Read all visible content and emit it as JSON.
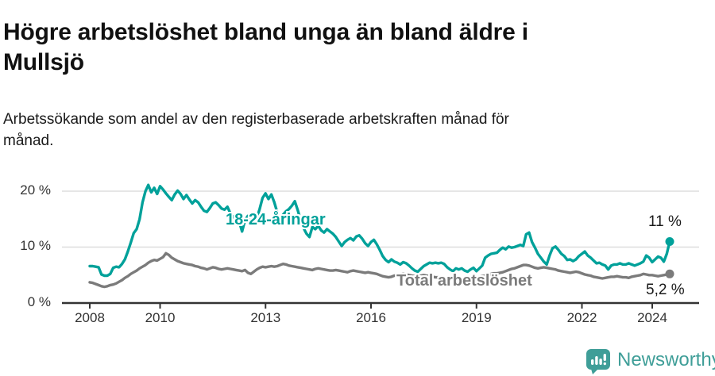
{
  "title": "Högre arbetslöshet bland unga än bland äldre i Mullsjö",
  "subtitle": "Arbetssökande som andel av den registerbaserade arbetskraften månad för månad.",
  "colors": {
    "accent_teal": "#00a19a",
    "line_gray": "#7b7b7b",
    "axis": "#333333",
    "gridline": "#dedede",
    "text_dark": "#1a1a1a",
    "logo_teal": "#3f9e98"
  },
  "chart_data": {
    "type": "line",
    "x_unit": "month",
    "x_tick_years": [
      2008,
      2010,
      2013,
      2016,
      2019,
      2022,
      2024
    ],
    "x_tick_labels": [
      "2008",
      "2010",
      "2013",
      "2016",
      "2019",
      "2022",
      "2024"
    ],
    "y_ticks": [
      0,
      10,
      20
    ],
    "y_tick_labels": [
      "0 %",
      "10 %",
      "20 %"
    ],
    "ylim": [
      0,
      22
    ],
    "grid": "horizontal",
    "series": [
      {
        "name": "18-24-åringar",
        "color": "#00a19a",
        "end_label": "11 %",
        "end_value": 11.0,
        "values": [
          6.6,
          6.6,
          6.5,
          6.4,
          5.1,
          4.9,
          4.9,
          5.2,
          6.3,
          6.5,
          6.4,
          7.0,
          7.8,
          9.2,
          10.8,
          12.5,
          13.2,
          15.0,
          18.0,
          20.0,
          21.1,
          19.8,
          20.6,
          19.5,
          20.9,
          20.3,
          19.6,
          19.0,
          18.4,
          19.4,
          20.1,
          19.5,
          18.6,
          19.3,
          18.5,
          17.8,
          18.4,
          18.0,
          17.2,
          16.5,
          16.3,
          17.0,
          17.8,
          18.0,
          17.5,
          16.9,
          16.7,
          17.2,
          16.0,
          15.4,
          15.0,
          14.6,
          12.8,
          14.8,
          15.6,
          14.4,
          14.7,
          15.2,
          16.8,
          18.8,
          19.6,
          18.6,
          19.4,
          18.0,
          16.2,
          14.8,
          15.8,
          16.4,
          16.8,
          17.4,
          18.2,
          16.6,
          14.8,
          13.4,
          12.4,
          11.8,
          13.6,
          13.2,
          13.8,
          13.0,
          12.6,
          13.2,
          12.8,
          12.4,
          11.8,
          11.0,
          10.2,
          10.9,
          11.3,
          11.6,
          11.2,
          11.9,
          12.1,
          11.5,
          10.7,
          10.2,
          10.9,
          11.3,
          10.5,
          9.5,
          8.4,
          7.7,
          7.3,
          7.8,
          7.4,
          7.2,
          6.9,
          7.3,
          7.1,
          6.7,
          6.2,
          5.8,
          5.6,
          6.1,
          6.6,
          6.9,
          7.2,
          7.1,
          7.2,
          7.1,
          7.2,
          7.0,
          6.4,
          6.0,
          5.7,
          6.2,
          6.0,
          6.2,
          5.8,
          5.6,
          6.0,
          6.3,
          5.7,
          6.2,
          6.7,
          8.1,
          8.5,
          8.8,
          8.9,
          9.0,
          9.5,
          9.9,
          9.6,
          10.1,
          9.9,
          10.0,
          10.2,
          10.4,
          10.2,
          12.3,
          12.6,
          10.9,
          9.9,
          8.8,
          8.1,
          7.4,
          6.9,
          8.5,
          9.8,
          10.1,
          9.5,
          8.8,
          8.4,
          7.7,
          7.8,
          7.5,
          7.8,
          8.4,
          8.8,
          9.2,
          8.5,
          8.1,
          7.6,
          7.1,
          7.2,
          6.9,
          6.7,
          6.0,
          6.7,
          6.9,
          6.9,
          7.1,
          6.9,
          6.9,
          7.1,
          6.9,
          6.7,
          6.9,
          7.1,
          7.4,
          8.5,
          8.1,
          7.3,
          7.8,
          8.3,
          8.1,
          7.4,
          8.8,
          11.0
        ]
      },
      {
        "name": "Total arbetslöshet",
        "color": "#7b7b7b",
        "end_label": "5,2 %",
        "end_value": 5.2,
        "values": [
          3.7,
          3.6,
          3.4,
          3.2,
          3.0,
          2.9,
          3.0,
          3.2,
          3.3,
          3.5,
          3.8,
          4.1,
          4.5,
          4.8,
          5.2,
          5.5,
          5.8,
          6.2,
          6.5,
          6.8,
          7.2,
          7.5,
          7.7,
          7.6,
          7.9,
          8.2,
          8.9,
          8.6,
          8.1,
          7.8,
          7.5,
          7.3,
          7.1,
          7.0,
          6.9,
          6.8,
          6.6,
          6.5,
          6.3,
          6.2,
          6.0,
          6.2,
          6.4,
          6.3,
          6.1,
          6.0,
          6.1,
          6.2,
          6.1,
          6.0,
          5.9,
          5.8,
          5.7,
          5.9,
          5.4,
          5.2,
          5.6,
          6.0,
          6.3,
          6.5,
          6.4,
          6.5,
          6.6,
          6.5,
          6.6,
          6.8,
          7.0,
          6.9,
          6.7,
          6.6,
          6.5,
          6.4,
          6.3,
          6.2,
          6.1,
          6.0,
          5.9,
          6.1,
          6.2,
          6.1,
          6.0,
          5.9,
          5.8,
          5.8,
          5.9,
          5.8,
          5.7,
          5.6,
          5.5,
          5.7,
          5.8,
          5.7,
          5.6,
          5.5,
          5.4,
          5.5,
          5.4,
          5.3,
          5.2,
          5.0,
          4.8,
          4.7,
          4.6,
          4.7,
          4.9,
          5.0,
          5.1,
          5.2,
          5.1,
          5.0,
          4.9,
          4.8,
          4.7,
          4.9,
          5.0,
          4.9,
          4.8,
          4.7,
          4.6,
          4.6,
          4.7,
          4.6,
          4.5,
          4.4,
          4.3,
          4.5,
          4.6,
          4.5,
          4.4,
          4.3,
          4.3,
          4.4,
          4.6,
          4.7,
          4.8,
          4.9,
          5.0,
          5.2,
          5.3,
          5.3,
          5.4,
          5.5,
          5.7,
          5.9,
          6.1,
          6.2,
          6.4,
          6.6,
          6.8,
          6.8,
          6.7,
          6.5,
          6.3,
          6.2,
          6.3,
          6.4,
          6.3,
          6.2,
          6.1,
          6.0,
          5.8,
          5.7,
          5.6,
          5.5,
          5.4,
          5.5,
          5.6,
          5.5,
          5.3,
          5.1,
          5.0,
          4.9,
          4.7,
          4.6,
          4.5,
          4.4,
          4.5,
          4.6,
          4.7,
          4.7,
          4.8,
          4.7,
          4.6,
          4.6,
          4.5,
          4.7,
          4.8,
          4.9,
          5.0,
          5.2,
          5.1,
          5.0,
          5.0,
          4.9,
          4.8,
          4.9,
          5.0,
          5.1,
          5.2
        ]
      }
    ]
  },
  "branding": {
    "logo_text": "Newsworthy",
    "logo_color": "#3f9e98"
  }
}
